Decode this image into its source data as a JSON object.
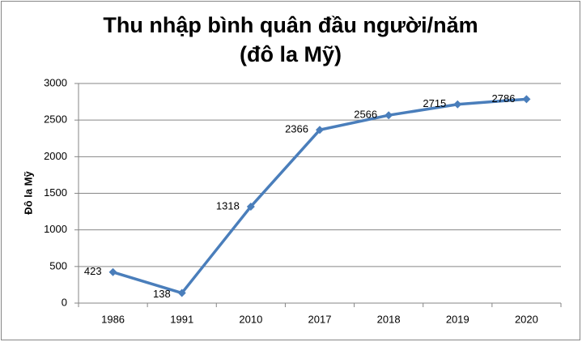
{
  "chart_data": {
    "type": "line",
    "title": [
      "Thu nhập bình quân đầu người/năm",
      "(đô la Mỹ)"
    ],
    "y_label": "Đô la Mỹ",
    "categories": [
      "1986",
      "1991",
      "2010",
      "2017",
      "2018",
      "2019",
      "2020"
    ],
    "series": [
      {
        "name": "Thu nhập bình quân đầu người",
        "color": "#4a7ebb",
        "values": [
          423,
          138,
          1318,
          2366,
          2566,
          2715,
          2786
        ]
      }
    ],
    "ylim": [
      0,
      3000
    ],
    "yticks": [
      0,
      500,
      1000,
      1500,
      2000,
      2500,
      3000
    ],
    "grid": true
  }
}
